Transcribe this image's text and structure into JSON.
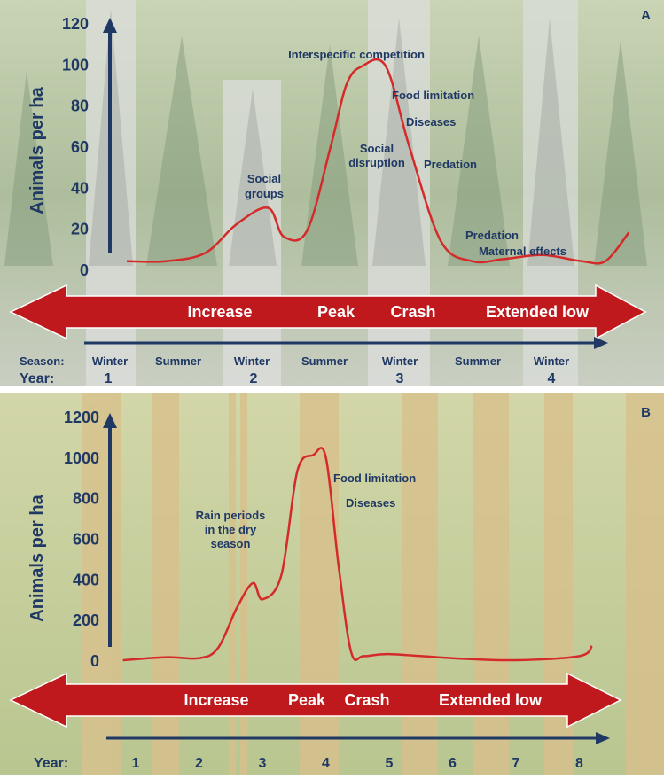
{
  "colors": {
    "navy": "#1f3864",
    "curve": "#d42a2a",
    "arrow_band": "#c0191d",
    "forest_light": "#b8c7a6",
    "forest_dark": "#8fa485",
    "snow_band": "#dcdcdc",
    "savanna_green": "#aebe82",
    "savanna_tan": "#d6c08a"
  },
  "icons": [
    "double-headed-arrow",
    "right-arrow",
    "up-arrow"
  ],
  "chart_data": [
    {
      "type": "line",
      "panel_label": "A",
      "ylabel": "Animals per ha",
      "ylim": [
        0,
        120
      ],
      "yticks": [
        "0",
        "20",
        "40",
        "60",
        "80",
        "100",
        "120"
      ],
      "x": [
        0.0,
        0.5,
        1.0,
        1.4,
        1.8,
        2.0,
        2.3,
        2.6,
        2.8,
        3.0,
        3.3,
        3.6,
        4.0,
        4.4,
        4.8,
        5.3,
        5.8,
        6.1,
        6.4
      ],
      "values": [
        4,
        4,
        8,
        22,
        30,
        16,
        19,
        60,
        90,
        99,
        99,
        60,
        14,
        4,
        5,
        7,
        4,
        4,
        18
      ],
      "season_label": "Season:",
      "year_label": "Year:",
      "seasons": [
        "Winter",
        "Summer",
        "Winter",
        "Summer",
        "Winter",
        "Summer",
        "Winter"
      ],
      "years": [
        "1",
        "2",
        "3",
        "4"
      ],
      "phases": [
        "Increase",
        "Peak",
        "Crash",
        "Extended low"
      ],
      "annotations": [
        "Interspecific competition",
        "Food limitation",
        "Diseases",
        "Social disruption",
        "Predation",
        "Social groups",
        "Predation",
        "Maternal effects"
      ]
    },
    {
      "type": "line",
      "panel_label": "B",
      "ylabel": "Animals per ha",
      "ylim": [
        0,
        1200
      ],
      "yticks": [
        "0",
        "200",
        "400",
        "600",
        "800",
        "1000",
        "1200"
      ],
      "x": [
        0.8,
        1.5,
        2.0,
        2.3,
        2.6,
        2.85,
        3.0,
        3.3,
        3.55,
        3.8,
        4.0,
        4.2,
        4.4,
        4.6,
        5.0,
        6.0,
        7.0,
        8.0,
        8.2
      ],
      "values": [
        0,
        15,
        10,
        60,
        260,
        380,
        300,
        420,
        930,
        1010,
        1000,
        470,
        40,
        20,
        30,
        10,
        0,
        20,
        70
      ],
      "year_label": "Year:",
      "years": [
        "1",
        "2",
        "3",
        "4",
        "5",
        "6",
        "7",
        "8"
      ],
      "phases": [
        "Increase",
        "Peak",
        "Crash",
        "Extended low"
      ],
      "annotations": [
        "Food limitation",
        "Diseases",
        "Rain periods in the dry season"
      ]
    }
  ]
}
